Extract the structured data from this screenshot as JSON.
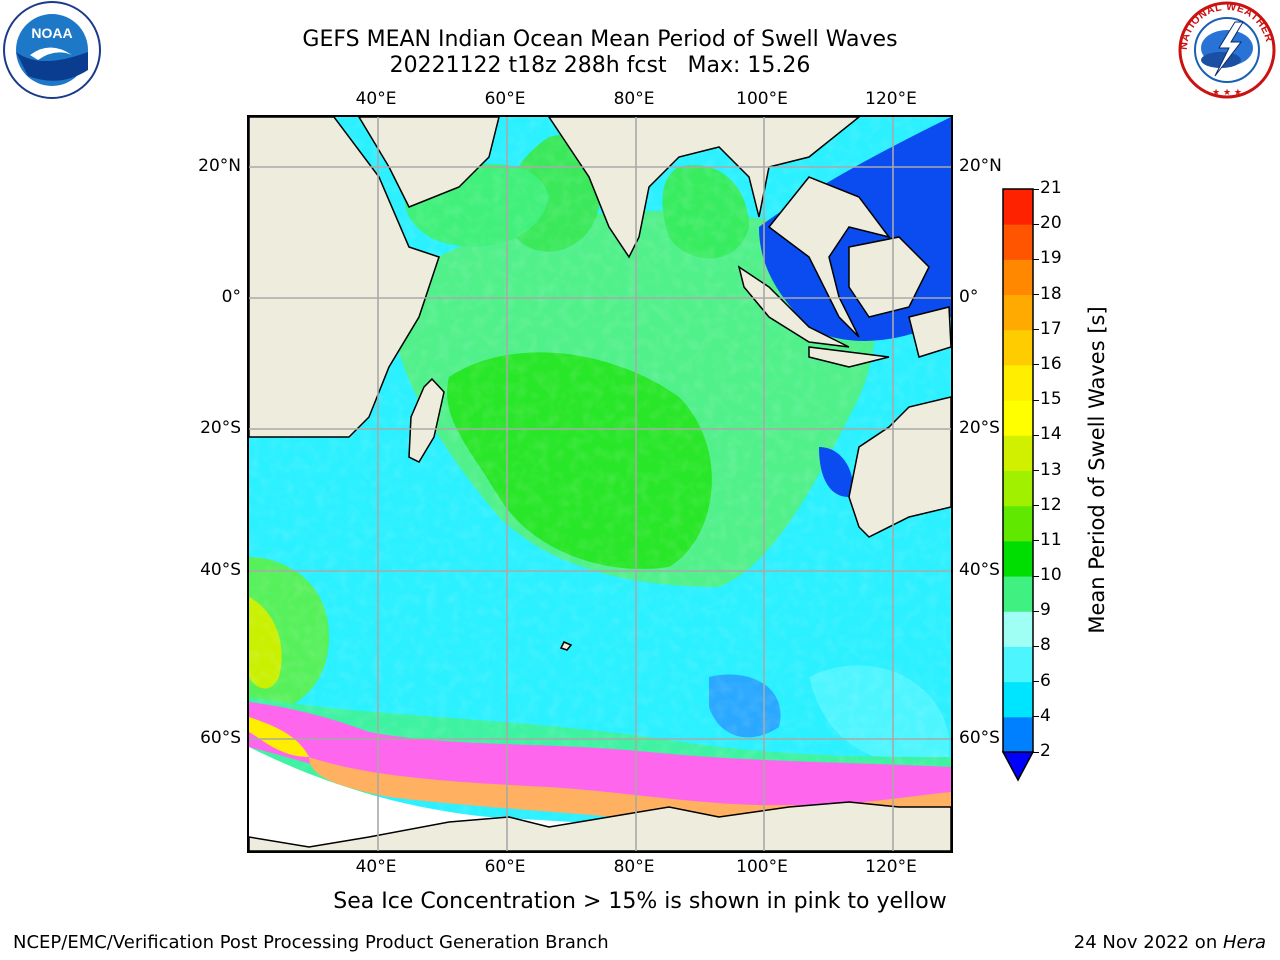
{
  "title_line1": "GEFS MEAN Indian Ocean Mean Period of Swell Waves",
  "title_line2": "20221122 t18z 288h fcst   Max: 15.26",
  "lon_labels": [
    "40°E",
    "60°E",
    "80°E",
    "100°E",
    "120°E"
  ],
  "lat_labels": [
    "20°N",
    "0°",
    "20°S",
    "40°S",
    "60°S"
  ],
  "colorbar": {
    "label": "Mean Period of Swell Waves [s]",
    "ticks": [
      "2",
      "4",
      "6",
      "8",
      "9",
      "10",
      "11",
      "12",
      "13",
      "14",
      "15",
      "16",
      "17",
      "18",
      "19",
      "20",
      "21"
    ],
    "colors": [
      "#0000ff",
      "#0080ff",
      "#00e5ff",
      "#4df5ff",
      "#a0fff5",
      "#40f080",
      "#00dd00",
      "#60e800",
      "#a0f000",
      "#d0f000",
      "#ffff00",
      "#ffee00",
      "#ffcc00",
      "#ffaa00",
      "#ff8800",
      "#ff5500",
      "#ff2200",
      "#ff0000"
    ]
  },
  "sea_ice_note": "Sea Ice Concentration > 15% is shown in pink to yellow",
  "branch": "NCEP/EMC/Verification Post Processing Product Generation Branch",
  "date": "24 Nov 2022 on ",
  "machine": "Hera",
  "logos": {
    "left": "NOAA",
    "right": "NATIONAL WEATHER SERVICE"
  }
}
